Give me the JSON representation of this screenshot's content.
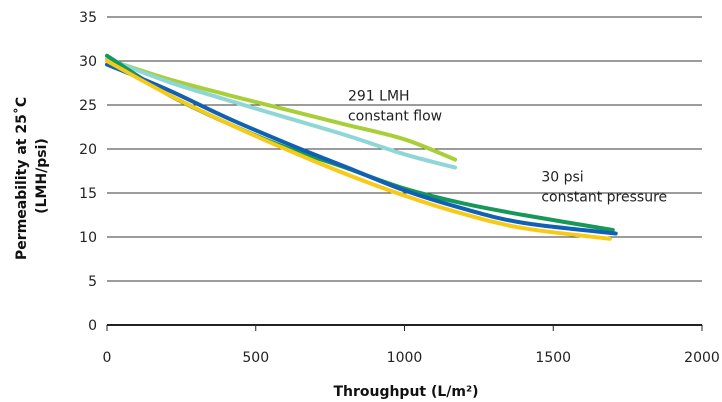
{
  "chart_data": {
    "type": "line",
    "xlabel": "Throughput (L/m²)",
    "ylabel": [
      "Permeability at 25˚C",
      "(LMH/psi)"
    ],
    "xlim": [
      0,
      2000
    ],
    "ylim": [
      0,
      35
    ],
    "xticks": [
      0,
      500,
      1000,
      1500,
      2000
    ],
    "yticks": [
      0,
      5,
      10,
      15,
      20,
      25,
      30,
      35
    ],
    "grid": "horizontal",
    "annotations": [
      {
        "lines": [
          "291 LMH",
          "constant flow"
        ],
        "at": [
          810,
          25.5
        ]
      },
      {
        "lines": [
          "30 psi",
          "constant pressure"
        ],
        "at": [
          1460,
          16.3
        ]
      }
    ],
    "series": [
      {
        "color": "#a9cf38",
        "points": [
          [
            0,
            30.2
          ],
          [
            200,
            28.0
          ],
          [
            400,
            26.2
          ],
          [
            600,
            24.5
          ],
          [
            800,
            22.8
          ],
          [
            1000,
            21.1
          ],
          [
            1170,
            18.8
          ]
        ]
      },
      {
        "color": "#8fd6d6",
        "points": [
          [
            0,
            30.3
          ],
          [
            200,
            27.7
          ],
          [
            400,
            25.6
          ],
          [
            600,
            23.6
          ],
          [
            800,
            21.6
          ],
          [
            1000,
            19.4
          ],
          [
            1170,
            17.9
          ]
        ]
      },
      {
        "color": "#16985a",
        "points": [
          [
            0,
            30.6
          ],
          [
            200,
            26.3
          ],
          [
            400,
            23.0
          ],
          [
            600,
            20.2
          ],
          [
            800,
            17.9
          ],
          [
            1000,
            15.5
          ],
          [
            1200,
            13.8
          ],
          [
            1400,
            12.5
          ],
          [
            1700,
            10.8
          ]
        ]
      },
      {
        "color": "#1060b4",
        "points": [
          [
            0,
            29.6
          ],
          [
            200,
            26.8
          ],
          [
            400,
            23.6
          ],
          [
            600,
            20.7
          ],
          [
            800,
            18.0
          ],
          [
            1000,
            15.3
          ],
          [
            1200,
            13.2
          ],
          [
            1400,
            11.6
          ],
          [
            1710,
            10.4
          ]
        ]
      },
      {
        "color": "#f7ca18",
        "points": [
          [
            0,
            30.0
          ],
          [
            200,
            26.3
          ],
          [
            400,
            23.0
          ],
          [
            600,
            20.0
          ],
          [
            800,
            17.2
          ],
          [
            1000,
            14.7
          ],
          [
            1200,
            12.6
          ],
          [
            1400,
            11.0
          ],
          [
            1690,
            9.8
          ]
        ]
      }
    ]
  }
}
